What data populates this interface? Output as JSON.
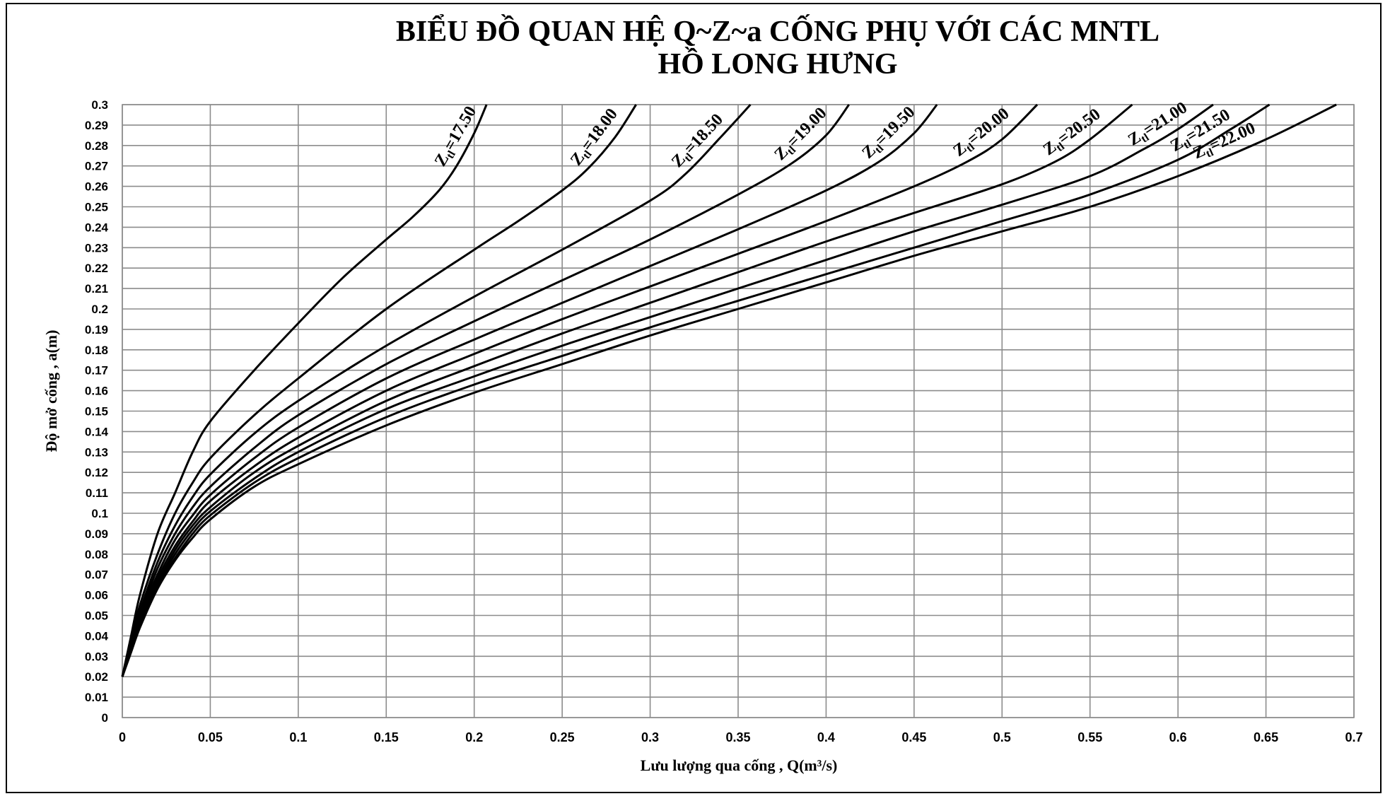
{
  "chart_data": {
    "type": "line",
    "title_line1": "BIỂU ĐỒ QUAN HỆ Q~Z~a CỐNG PHỤ VỚI CÁC MNTL",
    "title_line2": "HỒ LONG HƯNG",
    "xlabel": "Lưu lượng qua cống , Q(m³/s)",
    "ylabel": "Độ mở cống , a(m)",
    "xlim": [
      0,
      0.7
    ],
    "ylim": [
      0,
      0.3
    ],
    "x_ticks": [
      "0",
      "0.05",
      "0.1",
      "0.15",
      "0.2",
      "0.25",
      "0.3",
      "0.35",
      "0.4",
      "0.45",
      "0.5",
      "0.55",
      "0.6",
      "0.65",
      "0.7"
    ],
    "y_ticks": [
      "0",
      "0.01",
      "0.02",
      "0.03",
      "0.04",
      "0.05",
      "0.06",
      "0.07",
      "0.08",
      "0.09",
      "0.1",
      "0.11",
      "0.12",
      "0.13",
      "0.14",
      "0.15",
      "0.16",
      "0.17",
      "0.18",
      "0.19",
      "0.2",
      "0.21",
      "0.22",
      "0.23",
      "0.24",
      "0.25",
      "0.26",
      "0.27",
      "0.28",
      "0.29",
      "0.3"
    ],
    "grid": true,
    "legend": "inline labels at curve ends",
    "series": [
      {
        "label_prefix": "Z",
        "label_sub": "tl",
        "label_value": "=17.50",
        "points": [
          [
            0,
            0.02
          ],
          [
            0.005,
            0.04
          ],
          [
            0.01,
            0.06
          ],
          [
            0.02,
            0.09
          ],
          [
            0.03,
            0.11
          ],
          [
            0.04,
            0.13
          ],
          [
            0.05,
            0.145
          ],
          [
            0.075,
            0.17
          ],
          [
            0.1,
            0.193
          ],
          [
            0.125,
            0.215
          ],
          [
            0.15,
            0.234
          ],
          [
            0.165,
            0.245
          ],
          [
            0.18,
            0.258
          ],
          [
            0.19,
            0.27
          ],
          [
            0.2,
            0.286
          ],
          [
            0.207,
            0.3
          ]
        ]
      },
      {
        "label_prefix": "Z",
        "label_sub": "tl",
        "label_value": "=18.00",
        "points": [
          [
            0,
            0.02
          ],
          [
            0.005,
            0.038
          ],
          [
            0.01,
            0.055
          ],
          [
            0.02,
            0.08
          ],
          [
            0.03,
            0.1
          ],
          [
            0.04,
            0.115
          ],
          [
            0.05,
            0.127
          ],
          [
            0.075,
            0.148
          ],
          [
            0.1,
            0.166
          ],
          [
            0.15,
            0.2
          ],
          [
            0.2,
            0.229
          ],
          [
            0.225,
            0.243
          ],
          [
            0.25,
            0.258
          ],
          [
            0.265,
            0.269
          ],
          [
            0.28,
            0.284
          ],
          [
            0.292,
            0.3
          ]
        ]
      },
      {
        "label_prefix": "Z",
        "label_sub": "tl",
        "label_value": "=18.50",
        "points": [
          [
            0,
            0.02
          ],
          [
            0.005,
            0.037
          ],
          [
            0.01,
            0.052
          ],
          [
            0.02,
            0.076
          ],
          [
            0.03,
            0.094
          ],
          [
            0.04,
            0.108
          ],
          [
            0.05,
            0.119
          ],
          [
            0.075,
            0.139
          ],
          [
            0.1,
            0.155
          ],
          [
            0.15,
            0.182
          ],
          [
            0.2,
            0.206
          ],
          [
            0.25,
            0.229
          ],
          [
            0.3,
            0.253
          ],
          [
            0.32,
            0.266
          ],
          [
            0.34,
            0.284
          ],
          [
            0.357,
            0.3
          ]
        ]
      },
      {
        "label_prefix": "Z",
        "label_sub": "tl",
        "label_value": "=19.00",
        "points": [
          [
            0,
            0.02
          ],
          [
            0.005,
            0.036
          ],
          [
            0.01,
            0.05
          ],
          [
            0.02,
            0.073
          ],
          [
            0.03,
            0.09
          ],
          [
            0.04,
            0.103
          ],
          [
            0.05,
            0.113
          ],
          [
            0.075,
            0.132
          ],
          [
            0.1,
            0.148
          ],
          [
            0.15,
            0.173
          ],
          [
            0.2,
            0.194
          ],
          [
            0.25,
            0.214
          ],
          [
            0.3,
            0.234
          ],
          [
            0.35,
            0.256
          ],
          [
            0.38,
            0.271
          ],
          [
            0.4,
            0.285
          ],
          [
            0.413,
            0.3
          ]
        ]
      },
      {
        "label_prefix": "Z",
        "label_sub": "tl",
        "label_value": "=19.50",
        "points": [
          [
            0,
            0.02
          ],
          [
            0.005,
            0.035
          ],
          [
            0.01,
            0.049
          ],
          [
            0.02,
            0.07
          ],
          [
            0.03,
            0.087
          ],
          [
            0.04,
            0.099
          ],
          [
            0.05,
            0.109
          ],
          [
            0.075,
            0.127
          ],
          [
            0.1,
            0.142
          ],
          [
            0.15,
            0.166
          ],
          [
            0.2,
            0.185
          ],
          [
            0.25,
            0.203
          ],
          [
            0.3,
            0.221
          ],
          [
            0.35,
            0.239
          ],
          [
            0.4,
            0.258
          ],
          [
            0.43,
            0.272
          ],
          [
            0.45,
            0.286
          ],
          [
            0.463,
            0.3
          ]
        ]
      },
      {
        "label_prefix": "Z",
        "label_sub": "tl",
        "label_value": "=20.00",
        "points": [
          [
            0,
            0.02
          ],
          [
            0.005,
            0.034
          ],
          [
            0.01,
            0.048
          ],
          [
            0.02,
            0.068
          ],
          [
            0.03,
            0.084
          ],
          [
            0.04,
            0.096
          ],
          [
            0.05,
            0.106
          ],
          [
            0.075,
            0.123
          ],
          [
            0.1,
            0.137
          ],
          [
            0.15,
            0.16
          ],
          [
            0.2,
            0.178
          ],
          [
            0.25,
            0.195
          ],
          [
            0.3,
            0.211
          ],
          [
            0.35,
            0.227
          ],
          [
            0.4,
            0.243
          ],
          [
            0.45,
            0.26
          ],
          [
            0.48,
            0.272
          ],
          [
            0.5,
            0.283
          ],
          [
            0.52,
            0.3
          ]
        ]
      },
      {
        "label_prefix": "Z",
        "label_sub": "tl",
        "label_value": "=20.50",
        "points": [
          [
            0,
            0.02
          ],
          [
            0.005,
            0.034
          ],
          [
            0.01,
            0.047
          ],
          [
            0.02,
            0.066
          ],
          [
            0.03,
            0.082
          ],
          [
            0.04,
            0.094
          ],
          [
            0.05,
            0.103
          ],
          [
            0.075,
            0.12
          ],
          [
            0.1,
            0.133
          ],
          [
            0.15,
            0.155
          ],
          [
            0.2,
            0.172
          ],
          [
            0.25,
            0.188
          ],
          [
            0.3,
            0.203
          ],
          [
            0.35,
            0.218
          ],
          [
            0.4,
            0.233
          ],
          [
            0.45,
            0.247
          ],
          [
            0.5,
            0.261
          ],
          [
            0.53,
            0.272
          ],
          [
            0.55,
            0.283
          ],
          [
            0.574,
            0.3
          ]
        ]
      },
      {
        "label_prefix": "Z",
        "label_sub": "tl",
        "label_value": "=21.00",
        "points": [
          [
            0,
            0.02
          ],
          [
            0.005,
            0.033
          ],
          [
            0.01,
            0.046
          ],
          [
            0.02,
            0.065
          ],
          [
            0.03,
            0.08
          ],
          [
            0.04,
            0.092
          ],
          [
            0.05,
            0.101
          ],
          [
            0.075,
            0.117
          ],
          [
            0.1,
            0.13
          ],
          [
            0.15,
            0.151
          ],
          [
            0.2,
            0.167
          ],
          [
            0.25,
            0.182
          ],
          [
            0.3,
            0.196
          ],
          [
            0.35,
            0.21
          ],
          [
            0.4,
            0.224
          ],
          [
            0.45,
            0.238
          ],
          [
            0.5,
            0.251
          ],
          [
            0.55,
            0.265
          ],
          [
            0.58,
            0.278
          ],
          [
            0.6,
            0.288
          ],
          [
            0.62,
            0.3
          ]
        ]
      },
      {
        "label_prefix": "Z",
        "label_sub": "tl",
        "label_value": "=21.50",
        "points": [
          [
            0,
            0.02
          ],
          [
            0.005,
            0.033
          ],
          [
            0.01,
            0.045
          ],
          [
            0.02,
            0.064
          ],
          [
            0.03,
            0.078
          ],
          [
            0.04,
            0.09
          ],
          [
            0.05,
            0.099
          ],
          [
            0.075,
            0.115
          ],
          [
            0.1,
            0.127
          ],
          [
            0.15,
            0.147
          ],
          [
            0.2,
            0.163
          ],
          [
            0.25,
            0.177
          ],
          [
            0.3,
            0.191
          ],
          [
            0.35,
            0.204
          ],
          [
            0.4,
            0.217
          ],
          [
            0.45,
            0.23
          ],
          [
            0.5,
            0.243
          ],
          [
            0.55,
            0.256
          ],
          [
            0.6,
            0.273
          ],
          [
            0.63,
            0.288
          ],
          [
            0.652,
            0.3
          ]
        ]
      },
      {
        "label_prefix": "Z",
        "label_sub": "tl",
        "label_value": "=22.00",
        "points": [
          [
            0,
            0.02
          ],
          [
            0.005,
            0.032
          ],
          [
            0.01,
            0.044
          ],
          [
            0.02,
            0.063
          ],
          [
            0.03,
            0.077
          ],
          [
            0.04,
            0.088
          ],
          [
            0.05,
            0.097
          ],
          [
            0.075,
            0.113
          ],
          [
            0.1,
            0.124
          ],
          [
            0.15,
            0.143
          ],
          [
            0.2,
            0.159
          ],
          [
            0.25,
            0.173
          ],
          [
            0.3,
            0.187
          ],
          [
            0.35,
            0.2
          ],
          [
            0.4,
            0.213
          ],
          [
            0.45,
            0.226
          ],
          [
            0.5,
            0.238
          ],
          [
            0.55,
            0.25
          ],
          [
            0.6,
            0.265
          ],
          [
            0.65,
            0.283
          ],
          [
            0.69,
            0.3
          ]
        ]
      }
    ]
  }
}
